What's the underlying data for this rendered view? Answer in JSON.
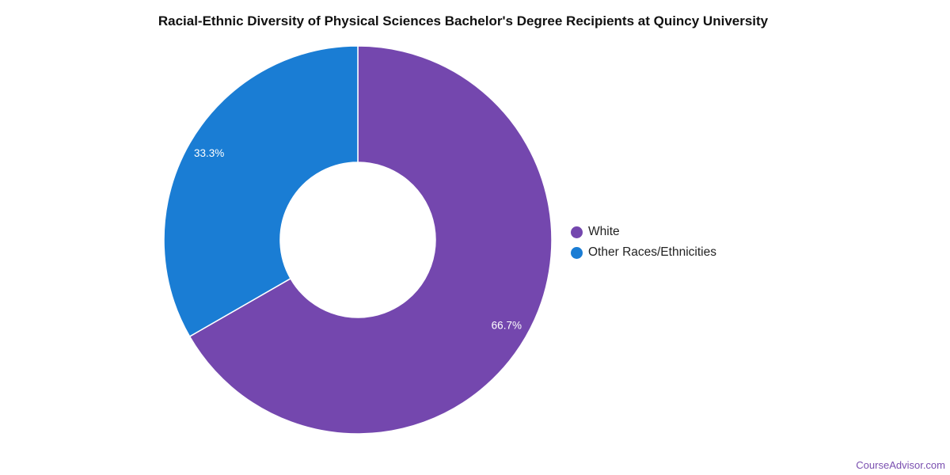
{
  "chart_data": {
    "type": "pie",
    "style": "donut",
    "title": "Racial-Ethnic Diversity of Physical Sciences Bachelor's Degree Recipients at Quincy University",
    "slices": [
      {
        "label": "White",
        "value": 66.7,
        "display": "66.7%",
        "color": "#7447ae"
      },
      {
        "label": "Other Races/Ethnicities",
        "value": 33.3,
        "display": "33.3%",
        "color": "#1a7dd4"
      }
    ],
    "legend_position": "right"
  },
  "credit": "CourseAdvisor.com"
}
